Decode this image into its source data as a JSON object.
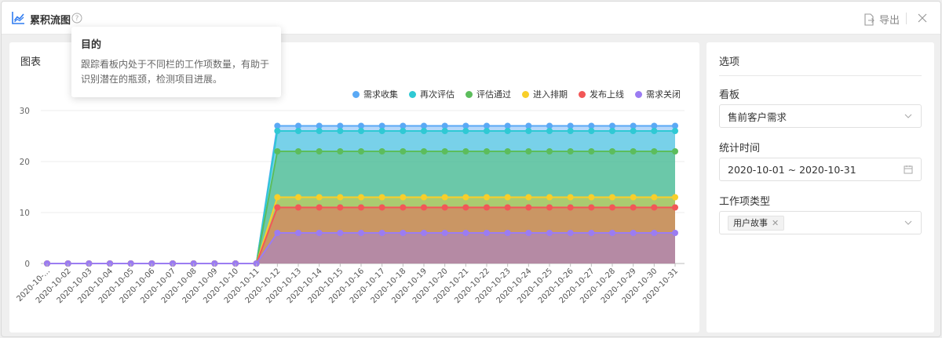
{
  "header": {
    "title": "累积流图",
    "export_label": "导出"
  },
  "tooltip": {
    "title": "目的",
    "body_line1": "跟踪看板内处于不同栏的工作项数量，有助于",
    "body_line2": "识别潜在的瓶颈，检测项目进展。"
  },
  "chart_panel": {
    "title": "图表"
  },
  "options": {
    "title": "选项",
    "board_label": "看板",
    "board_value": "售前客户需求",
    "time_label": "统计时间",
    "time_value": "2020-10-01 ~ 2020-10-31",
    "type_label": "工作项类型",
    "type_tag": "用户故事"
  },
  "chart_data": {
    "type": "area",
    "title": "",
    "xlabel": "",
    "ylabel": "",
    "ylim": [
      0,
      30
    ],
    "yticks": [
      0,
      10,
      20,
      30
    ],
    "grid": true,
    "legend_position": "top-right",
    "x": [
      "2020-10-01",
      "2020-10-02",
      "2020-10-03",
      "2020-10-04",
      "2020-10-05",
      "2020-10-06",
      "2020-10-07",
      "2020-10-08",
      "2020-10-09",
      "2020-10-10",
      "2020-10-11",
      "2020-10-12",
      "2020-10-13",
      "2020-10-14",
      "2020-10-15",
      "2020-10-16",
      "2020-10-17",
      "2020-10-18",
      "2020-10-19",
      "2020-10-20",
      "2020-10-21",
      "2020-10-22",
      "2020-10-23",
      "2020-10-24",
      "2020-10-25",
      "2020-10-26",
      "2020-10-27",
      "2020-10-28",
      "2020-10-29",
      "2020-10-30",
      "2020-10-31"
    ],
    "x_tick_labels": [
      "2020-10-...",
      "2020-10-02",
      "2020-10-03",
      "2020-10-04",
      "2020-10-05",
      "2020-10-06",
      "2020-10-07",
      "2020-10-08",
      "2020-10-09",
      "2020-10-10",
      "2020-10-11",
      "2020-10-12",
      "2020-10-13",
      "2020-10-14",
      "2020-10-15",
      "2020-10-16",
      "2020-10-17",
      "2020-10-18",
      "2020-10-19",
      "2020-10-20",
      "2020-10-21",
      "2020-10-22",
      "2020-10-23",
      "2020-10-24",
      "2020-10-25",
      "2020-10-26",
      "2020-10-27",
      "2020-10-28",
      "2020-10-29",
      "2020-10-30",
      "2020-10-31"
    ],
    "series": [
      {
        "name": "需求收集",
        "color": "#5aa9f5",
        "values": [
          0,
          0,
          0,
          0,
          0,
          0,
          0,
          0,
          0,
          0,
          0,
          27,
          27,
          27,
          27,
          27,
          27,
          27,
          27,
          27,
          27,
          27,
          27,
          27,
          27,
          27,
          27,
          27,
          27,
          27,
          27
        ]
      },
      {
        "name": "再次评估",
        "color": "#2fc9d4",
        "values": [
          0,
          0,
          0,
          0,
          0,
          0,
          0,
          0,
          0,
          0,
          0,
          26,
          26,
          26,
          26,
          26,
          26,
          26,
          26,
          26,
          26,
          26,
          26,
          26,
          26,
          26,
          26,
          26,
          26,
          26,
          26
        ]
      },
      {
        "name": "评估通过",
        "color": "#5cbd5c",
        "values": [
          0,
          0,
          0,
          0,
          0,
          0,
          0,
          0,
          0,
          0,
          0,
          22,
          22,
          22,
          22,
          22,
          22,
          22,
          22,
          22,
          22,
          22,
          22,
          22,
          22,
          22,
          22,
          22,
          22,
          22,
          22
        ]
      },
      {
        "name": "进入排期",
        "color": "#f8cf2a",
        "values": [
          0,
          0,
          0,
          0,
          0,
          0,
          0,
          0,
          0,
          0,
          0,
          13,
          13,
          13,
          13,
          13,
          13,
          13,
          13,
          13,
          13,
          13,
          13,
          13,
          13,
          13,
          13,
          13,
          13,
          13,
          13
        ]
      },
      {
        "name": "发布上线",
        "color": "#f25757",
        "values": [
          0,
          0,
          0,
          0,
          0,
          0,
          0,
          0,
          0,
          0,
          0,
          11,
          11,
          11,
          11,
          11,
          11,
          11,
          11,
          11,
          11,
          11,
          11,
          11,
          11,
          11,
          11,
          11,
          11,
          11,
          11
        ]
      },
      {
        "name": "需求关闭",
        "color": "#9b7cf2",
        "values": [
          0,
          0,
          0,
          0,
          0,
          0,
          0,
          0,
          0,
          0,
          0,
          6,
          6,
          6,
          6,
          6,
          6,
          6,
          6,
          6,
          6,
          6,
          6,
          6,
          6,
          6,
          6,
          6,
          6,
          6,
          6
        ]
      }
    ]
  }
}
